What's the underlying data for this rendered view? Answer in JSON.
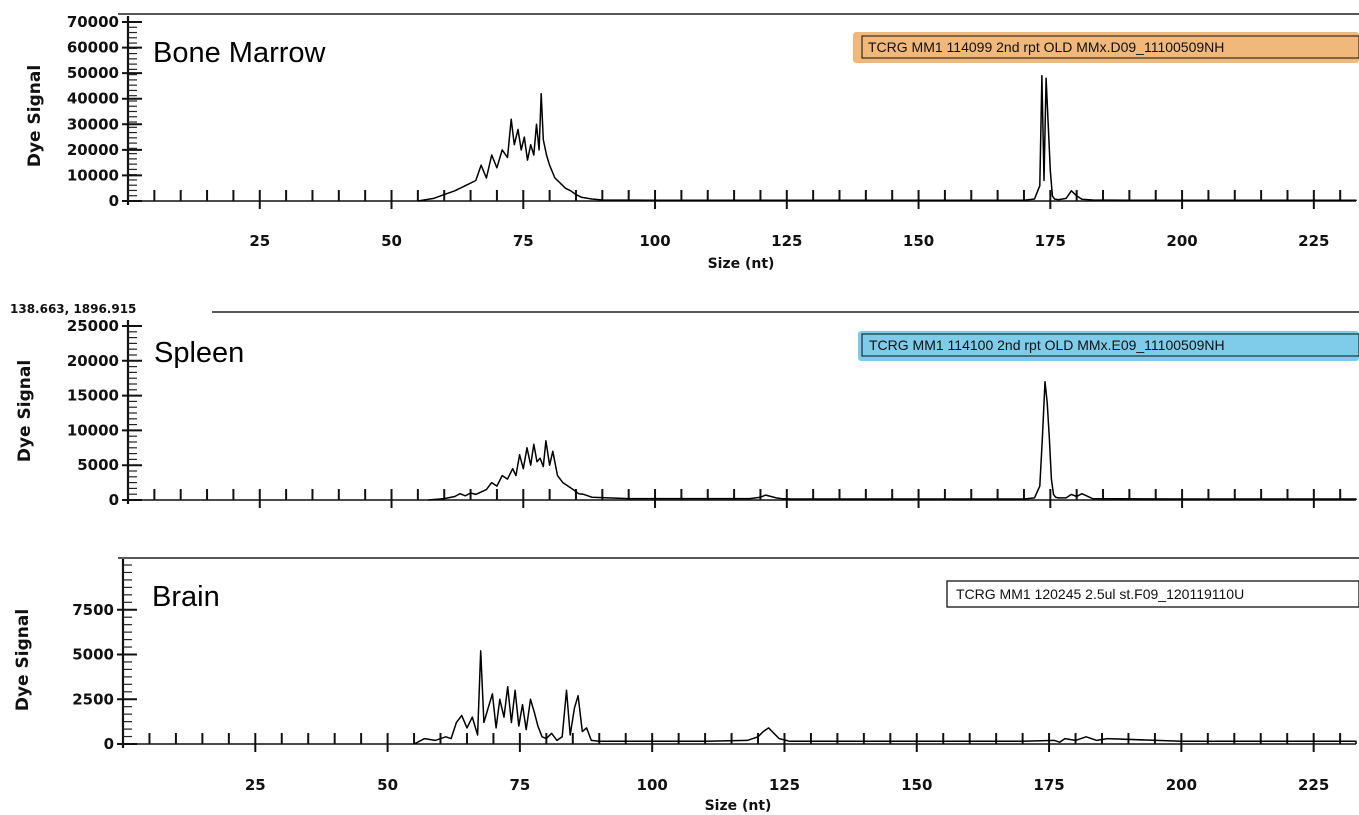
{
  "chart_data": [
    {
      "type": "line",
      "panel_label": "Bone Marrow",
      "sample_name": "TCRG MM1 114099 2nd rpt OLD MMx.D09_11100509NH",
      "sample_highlight": "#f0b87a",
      "ylabel": "Dye Signal",
      "xlabel": "Size (nt)",
      "xlim": [
        0,
        233
      ],
      "ylim": [
        0,
        70000
      ],
      "yticks": [
        0,
        10000,
        20000,
        30000,
        40000,
        50000,
        60000,
        70000
      ],
      "xticks": [
        25,
        50,
        75,
        100,
        125,
        150,
        175,
        200,
        225
      ],
      "series": [
        {
          "color": "#000000",
          "x": [
            55,
            58,
            60,
            62,
            64,
            66,
            67,
            68,
            69,
            70,
            71,
            72,
            72.7,
            73.3,
            74,
            74.6,
            75.2,
            75.8,
            76.4,
            77,
            77.5,
            78,
            78.4,
            78.8,
            79.4,
            80,
            81,
            82,
            83,
            84,
            85,
            86,
            88,
            90,
            100,
            110,
            120,
            130,
            140,
            150,
            160,
            170,
            172,
            173,
            173.4,
            173.8,
            174.2,
            174.6,
            175,
            175.4,
            175.8,
            176.5,
            178,
            179,
            180,
            181,
            183,
            190,
            200,
            210,
            220,
            233
          ],
          "values": [
            0,
            1000,
            2500,
            4000,
            6000,
            8000,
            14000,
            9000,
            18000,
            13000,
            20000,
            17000,
            32000,
            22000,
            28000,
            20000,
            25000,
            16000,
            22000,
            18000,
            30000,
            20000,
            42000,
            24000,
            18000,
            14000,
            9000,
            7000,
            5000,
            4000,
            2500,
            1500,
            800,
            400,
            300,
            300,
            300,
            300,
            300,
            300,
            300,
            300,
            800,
            6000,
            49000,
            8000,
            48000,
            30000,
            12000,
            2000,
            800,
            500,
            1000,
            4000,
            2000,
            700,
            400,
            300,
            300,
            300,
            300,
            300
          ]
        }
      ]
    },
    {
      "type": "line",
      "panel_label": "Spleen",
      "sample_name": "TCRG MM1 114100 2nd rpt OLD MMx.E09_11100509NH",
      "sample_highlight": "#7ecbea",
      "cursor_readout": "138.663, 1896.915",
      "ylabel": "Dye Signal",
      "xlabel": "",
      "xlim": [
        0,
        233
      ],
      "ylim": [
        0,
        25000
      ],
      "yticks": [
        0,
        5000,
        10000,
        15000,
        20000,
        25000
      ],
      "xticks": [],
      "series": [
        {
          "color": "#000000",
          "x": [
            57,
            60,
            62,
            63,
            64,
            65,
            66,
            68,
            69,
            70,
            71,
            72,
            73,
            73.6,
            74.3,
            75,
            75.7,
            76.4,
            77,
            77.6,
            78.2,
            78.8,
            79.3,
            80,
            80.6,
            81.5,
            82.5,
            83.5,
            84.5,
            85.5,
            86.5,
            88,
            95,
            110,
            118,
            120,
            121,
            122,
            123,
            124,
            126,
            140,
            160,
            170,
            172,
            173,
            173.5,
            174,
            174.4,
            174.8,
            175.2,
            175.6,
            176,
            176.5,
            178,
            179,
            180,
            181,
            183,
            200,
            233
          ],
          "values": [
            0,
            200,
            500,
            900,
            600,
            1000,
            800,
            1500,
            2500,
            2000,
            3500,
            3000,
            4500,
            3500,
            6500,
            4500,
            7500,
            5000,
            8000,
            5500,
            6000,
            4800,
            8500,
            5000,
            7000,
            3500,
            2500,
            2000,
            1500,
            900,
            800,
            400,
            200,
            200,
            200,
            400,
            700,
            500,
            300,
            200,
            150,
            150,
            150,
            150,
            300,
            2000,
            9000,
            17000,
            14000,
            9000,
            3000,
            800,
            400,
            300,
            300,
            800,
            500,
            900,
            200,
            150,
            150
          ]
        }
      ]
    },
    {
      "type": "line",
      "panel_label": "Brain",
      "sample_name": "TCRG MM1 120245 2.5ul st.F09_120119110U",
      "sample_highlight": "#ffffff",
      "ylabel": "Dye Signal",
      "xlabel": "Size (nt)",
      "xlim": [
        0,
        233
      ],
      "ylim": [
        0,
        10000
      ],
      "yticks": [
        0,
        2500,
        5000,
        7500
      ],
      "xticks": [
        25,
        50,
        75,
        100,
        125,
        150,
        175,
        200,
        225
      ],
      "series": [
        {
          "color": "#000000",
          "x": [
            55,
            57,
            59,
            61,
            62,
            63,
            64,
            65,
            66,
            67,
            67.6,
            68.2,
            69,
            69.8,
            70.5,
            71.2,
            72,
            72.7,
            73.4,
            74.1,
            74.8,
            75.5,
            76.2,
            77,
            77.7,
            78.4,
            79.2,
            80,
            81,
            82,
            83,
            83.8,
            84.5,
            85.3,
            86,
            86.8,
            87.6,
            88.5,
            90,
            95,
            100,
            110,
            118,
            120,
            121,
            122,
            123,
            124,
            126,
            130,
            150,
            170,
            176,
            177,
            178,
            180,
            182,
            184,
            186,
            200,
            233
          ],
          "values": [
            0,
            300,
            200,
            400,
            300,
            1200,
            1600,
            900,
            1500,
            500,
            5200,
            1200,
            2000,
            2800,
            900,
            2500,
            1500,
            3200,
            1200,
            3000,
            1000,
            2200,
            800,
            2500,
            1800,
            1000,
            400,
            300,
            600,
            200,
            400,
            3000,
            500,
            2000,
            2700,
            700,
            900,
            200,
            150,
            150,
            150,
            150,
            200,
            400,
            700,
            900,
            600,
            300,
            150,
            150,
            150,
            150,
            200,
            100,
            300,
            200,
            400,
            200,
            300,
            150,
            150
          ]
        }
      ]
    }
  ]
}
